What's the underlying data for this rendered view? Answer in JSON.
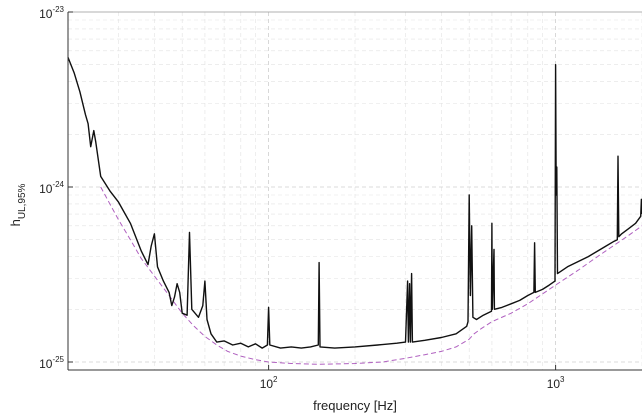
{
  "chart_data": {
    "type": "line",
    "title": "",
    "xlabel": "frequency [Hz]",
    "ylabel": "h",
    "ylabel_subscript": "UL,95%",
    "x_scale": "log",
    "y_scale": "log",
    "xlim": [
      20,
      2000
    ],
    "ylim": [
      9e-26,
      1e-23
    ],
    "grid": true,
    "x_ticks": [
      {
        "value": 100,
        "base": "10",
        "exp": "2"
      },
      {
        "value": 1000,
        "base": "10",
        "exp": "3"
      }
    ],
    "y_ticks": [
      {
        "value": 1e-25,
        "base": "10",
        "exp": "-25"
      },
      {
        "value": 1e-24,
        "base": "10",
        "exp": "-24"
      },
      {
        "value": 1e-23,
        "base": "10",
        "exp": "-23"
      }
    ],
    "series": [
      {
        "color": "#111111",
        "style": "solid",
        "points": [
          [
            20,
            5.5e-24
          ],
          [
            21,
            4.5e-24
          ],
          [
            22,
            3.5e-24
          ],
          [
            23,
            2.6e-24
          ],
          [
            23.5,
            2.3e-24
          ],
          [
            24,
            1.7e-24
          ],
          [
            24.6,
            2.1e-24
          ],
          [
            25,
            1.8e-24
          ],
          [
            26,
            1.15e-24
          ],
          [
            28,
            9.5e-25
          ],
          [
            30,
            8.2e-25
          ],
          [
            33,
            6.2e-25
          ],
          [
            36,
            4.3e-25
          ],
          [
            38,
            3.6e-25
          ],
          [
            39,
            4.6e-25
          ],
          [
            40,
            5.4e-25
          ],
          [
            41,
            3.5e-25
          ],
          [
            43,
            2.9e-25
          ],
          [
            45,
            2.5e-25
          ],
          [
            46,
            2.1e-25
          ],
          [
            47,
            2.35e-25
          ],
          [
            48,
            2.8e-25
          ],
          [
            49,
            2.5e-25
          ],
          [
            50,
            1.9e-25
          ],
          [
            52,
            1.85e-25
          ],
          [
            53,
            5.5e-25
          ],
          [
            54,
            2e-25
          ],
          [
            57,
            1.8e-25
          ],
          [
            59,
            2.1e-25
          ],
          [
            60,
            2.9e-25
          ],
          [
            61,
            1.75e-25
          ],
          [
            63,
            1.45e-25
          ],
          [
            66,
            1.3e-25
          ],
          [
            70,
            1.32e-25
          ],
          [
            75,
            1.25e-25
          ],
          [
            80,
            1.28e-25
          ],
          [
            85,
            1.22e-25
          ],
          [
            90,
            1.27e-25
          ],
          [
            95,
            1.2e-25
          ],
          [
            99,
            1.25e-25
          ],
          [
            100,
            2.05e-25
          ],
          [
            101,
            1.25e-25
          ],
          [
            110,
            1.2e-25
          ],
          [
            120,
            1.22e-25
          ],
          [
            130,
            1.2e-25
          ],
          [
            140,
            1.22e-25
          ],
          [
            149,
            1.25e-25
          ],
          [
            150,
            3.7e-25
          ],
          [
            151,
            1.22e-25
          ],
          [
            170,
            1.2e-25
          ],
          [
            200,
            1.22e-25
          ],
          [
            240,
            1.25e-25
          ],
          [
            280,
            1.28e-25
          ],
          [
            300,
            1.3e-25
          ],
          [
            305,
            2.9e-25
          ],
          [
            307,
            1.3e-25
          ],
          [
            310,
            2.8e-25
          ],
          [
            312,
            1.3e-25
          ],
          [
            315,
            3.2e-25
          ],
          [
            317,
            1.3e-25
          ],
          [
            350,
            1.33e-25
          ],
          [
            400,
            1.38e-25
          ],
          [
            450,
            1.45e-25
          ],
          [
            490,
            1.6e-25
          ],
          [
            495,
            1.7e-25
          ],
          [
            500,
            9e-25
          ],
          [
            505,
            2.4e-25
          ],
          [
            510,
            6e-25
          ],
          [
            515,
            1.8e-25
          ],
          [
            530,
            1.75e-25
          ],
          [
            560,
            1.85e-25
          ],
          [
            598,
            1.95e-25
          ],
          [
            600,
            6.2e-25
          ],
          [
            602,
            2e-25
          ],
          [
            610,
            4.4e-25
          ],
          [
            612,
            2e-25
          ],
          [
            650,
            2.05e-25
          ],
          [
            700,
            2.15e-25
          ],
          [
            750,
            2.25e-25
          ],
          [
            800,
            2.4e-25
          ],
          [
            840,
            2.5e-25
          ],
          [
            845,
            4.8e-25
          ],
          [
            850,
            2.5e-25
          ],
          [
            900,
            2.6e-25
          ],
          [
            950,
            2.75e-25
          ],
          [
            995,
            2.9e-25
          ],
          [
            1000,
            5e-24
          ],
          [
            1005,
            9e-25
          ],
          [
            1010,
            1.3e-24
          ],
          [
            1015,
            3.2e-25
          ],
          [
            1100,
            3.5e-25
          ],
          [
            1200,
            3.75e-25
          ],
          [
            1300,
            4e-25
          ],
          [
            1400,
            4.3e-25
          ],
          [
            1500,
            4.6e-25
          ],
          [
            1600,
            4.9e-25
          ],
          [
            1640,
            5e-25
          ],
          [
            1650,
            1.5e-24
          ],
          [
            1660,
            5.2e-25
          ],
          [
            1700,
            5.4e-25
          ],
          [
            1800,
            5.8e-25
          ],
          [
            1900,
            6.2e-25
          ],
          [
            1980,
            6.8e-25
          ],
          [
            1990,
            8.5e-25
          ],
          [
            2000,
            7e-25
          ]
        ]
      },
      {
        "color": "#b061c0",
        "style": "dashed",
        "points": [
          [
            26,
            1e-24
          ],
          [
            28,
            8e-25
          ],
          [
            30,
            6.5e-25
          ],
          [
            33,
            5e-25
          ],
          [
            36,
            3.9e-25
          ],
          [
            40,
            3.1e-25
          ],
          [
            45,
            2.4e-25
          ],
          [
            50,
            1.9e-25
          ],
          [
            55,
            1.6e-25
          ],
          [
            60,
            1.4e-25
          ],
          [
            66,
            1.25e-25
          ],
          [
            72,
            1.15e-25
          ],
          [
            80,
            1.08e-25
          ],
          [
            90,
            1.03e-25
          ],
          [
            100,
            1e-25
          ],
          [
            120,
            9.8e-26
          ],
          [
            150,
            9.7e-26
          ],
          [
            200,
            9.8e-26
          ],
          [
            250,
            1e-25
          ],
          [
            300,
            1.05e-25
          ],
          [
            350,
            1.1e-25
          ],
          [
            400,
            1.15e-25
          ],
          [
            450,
            1.22e-25
          ],
          [
            500,
            1.35e-25
          ],
          [
            520,
            1.45e-25
          ],
          [
            550,
            1.55e-25
          ],
          [
            600,
            1.7e-25
          ],
          [
            700,
            1.9e-25
          ],
          [
            800,
            2.15e-25
          ],
          [
            900,
            2.45e-25
          ],
          [
            1000,
            2.75e-25
          ],
          [
            1100,
            3.05e-25
          ],
          [
            1200,
            3.35e-25
          ],
          [
            1400,
            4e-25
          ],
          [
            1600,
            4.65e-25
          ],
          [
            1800,
            5.3e-25
          ],
          [
            2000,
            6e-25
          ]
        ]
      }
    ]
  }
}
